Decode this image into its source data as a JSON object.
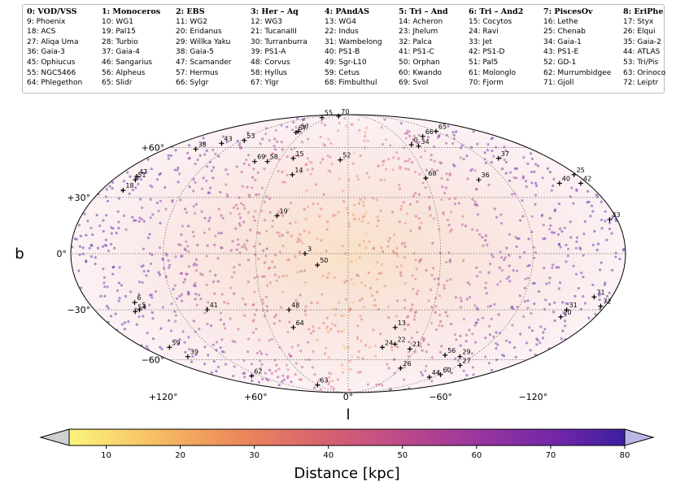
{
  "legend": {
    "columns": [
      [
        "0: VOD/VSS",
        "9: Phoenix",
        "18: ACS",
        "27: Aliqa Uma",
        "36: Gaia-3",
        "45: Ophiucus",
        "55: NGC5466",
        "64: Phlegethon"
      ],
      [
        "1: Monoceros",
        "10: WG1",
        "19: Pal15",
        "28: Turbio",
        "37: Gaia-4",
        "46: Sangarius",
        "56: Alpheus",
        "65: Slidr"
      ],
      [
        "2: EBS",
        "11: WG2",
        "20: Eridanus",
        "29: Willka Yaku",
        "38: Gaia-5",
        "47: Scamander",
        "57: Hermus",
        "66: Sylgr"
      ],
      [
        "3: Her – Aq",
        "12: WG3",
        "21: TucanaIII",
        "30: Turranburra",
        "39: PS1-A",
        "48: Corvus",
        "58: Hyllus",
        "67: Ylgr"
      ],
      [
        "4: PAndAS",
        "13: WG4",
        "22: Indus",
        "31: Wambelong",
        "40: PS1-B",
        "49: Sgr-L10",
        "59: Cetus",
        "68: Fimbulthul"
      ],
      [
        "5: Tri – And",
        "14: Acheron",
        "23: Jhelum",
        "32: Palca",
        "41: PS1-C",
        "50: Orphan",
        "60: Kwando",
        "69: Svol"
      ],
      [
        "6: Tri – And2",
        "15: Cocytos",
        "24: Ravi",
        "33: Jet",
        "42: PS1-D",
        "51: Pal5",
        "61: Molonglo",
        "70: Fjorm"
      ],
      [
        "7: PiscesOv",
        "16: Lethe",
        "25: Chenab",
        "34: Gaia-1",
        "43: PS1-E",
        "52: GD-1",
        "62: Murrumbidgee",
        "71: Gjoll"
      ],
      [
        "8: EriPhe",
        "17: Styx",
        "26: Elqui",
        "35: Gaia-2",
        "44: ATLAS",
        "53: Tri/Pis",
        "63: Orinoco",
        "72: Leiptr"
      ]
    ]
  },
  "chart_data": {
    "type": "scatter",
    "projection": "mollweide",
    "xlabel": "l",
    "ylabel": "b",
    "x_ticks": [
      "+120°",
      "+60°",
      "0°",
      "−60°",
      "−120°"
    ],
    "y_ticks": [
      "+60°",
      "+30°",
      "0°",
      "−30°",
      "−60°"
    ],
    "colorbar": {
      "label": "Distance [kpc]",
      "ticks": [
        "10",
        "20",
        "30",
        "40",
        "50",
        "60",
        "70",
        "80"
      ],
      "range": [
        5,
        80
      ],
      "colors": [
        "#fbf57c",
        "#f8c064",
        "#ec8a5a",
        "#d9646e",
        "#bd4a8a",
        "#9534a0",
        "#6a24a8",
        "#3b1fa0"
      ]
    },
    "streams": [
      {
        "id": "0",
        "l": -66,
        "b": 62
      },
      {
        "id": "3",
        "l": 28,
        "b": 0
      },
      {
        "id": "5",
        "l": 148,
        "b": -30
      },
      {
        "id": "6",
        "l": 148,
        "b": -26
      },
      {
        "id": "10",
        "l": -155,
        "b": -34
      },
      {
        "id": "13",
        "l": -36,
        "b": -40
      },
      {
        "id": "14",
        "l": 44,
        "b": 43
      },
      {
        "id": "15",
        "l": 49,
        "b": 53
      },
      {
        "id": "18",
        "l": 164,
        "b": 34
      },
      {
        "id": "19",
        "l": 48,
        "b": 20
      },
      {
        "id": "21",
        "l": -55,
        "b": -53
      },
      {
        "id": "22",
        "l": -40,
        "b": -50
      },
      {
        "id": "24",
        "l": -30,
        "b": -52
      },
      {
        "id": "25",
        "l": -178,
        "b": 43
      },
      {
        "id": "26",
        "l": -60,
        "b": -66
      },
      {
        "id": "27",
        "l": -122,
        "b": -64
      },
      {
        "id": "29",
        "l": -108,
        "b": -58
      },
      {
        "id": "31",
        "l": -155,
        "b": -30
      },
      {
        "id": "33",
        "l": -175,
        "b": 18
      },
      {
        "id": "34",
        "l": -72,
        "b": 61
      },
      {
        "id": "36",
        "l": -100,
        "b": 40
      },
      {
        "id": "37",
        "l": -134,
        "b": 53
      },
      {
        "id": "38",
        "l": 150,
        "b": 59
      },
      {
        "id": "39",
        "l": 155,
        "b": -58
      },
      {
        "id": "40",
        "l": -159,
        "b": 38
      },
      {
        "id": "41",
        "l": 100,
        "b": -30
      },
      {
        "id": "42",
        "l": -175,
        "b": 38
      },
      {
        "id": "43",
        "l": 135,
        "b": 63
      },
      {
        "id": "44",
        "l": -115,
        "b": -73
      },
      {
        "id": "47",
        "l": 165,
        "b": 42
      },
      {
        "id": "48",
        "l": 42,
        "b": -30
      },
      {
        "id": "50",
        "l": 20,
        "b": -6
      },
      {
        "id": "51",
        "l": 163,
        "b": 40
      },
      {
        "id": "52",
        "l": 7,
        "b": 52
      },
      {
        "id": "53",
        "l": 116,
        "b": 65
      },
      {
        "id": "54",
        "l": 152,
        "b": -31
      },
      {
        "id": "55",
        "l": 82,
        "b": 85
      },
      {
        "id": "56",
        "l": -92,
        "b": -57
      },
      {
        "id": "57",
        "l": 68,
        "b": 72
      },
      {
        "id": "58",
        "l": 70,
        "b": 51
      },
      {
        "id": "59",
        "l": 157,
        "b": -52
      },
      {
        "id": "60",
        "l": -122,
        "b": -71
      },
      {
        "id": "62",
        "l": 132,
        "b": -72
      },
      {
        "id": "63",
        "l": 61,
        "b": -80
      },
      {
        "id": "64",
        "l": 42,
        "b": -40
      },
      {
        "id": "65",
        "l": -120,
        "b": 72
      },
      {
        "id": "66",
        "l": -90,
        "b": 68
      },
      {
        "id": "67",
        "l": 69,
        "b": 71
      },
      {
        "id": "68",
        "l": -60,
        "b": 41
      },
      {
        "id": "69",
        "l": 81,
        "b": 51
      },
      {
        "id": "70",
        "l": 42,
        "b": 87
      },
      {
        "id": "71",
        "l": -168,
        "b": -23
      },
      {
        "id": "72",
        "l": -177,
        "b": -28
      }
    ]
  }
}
